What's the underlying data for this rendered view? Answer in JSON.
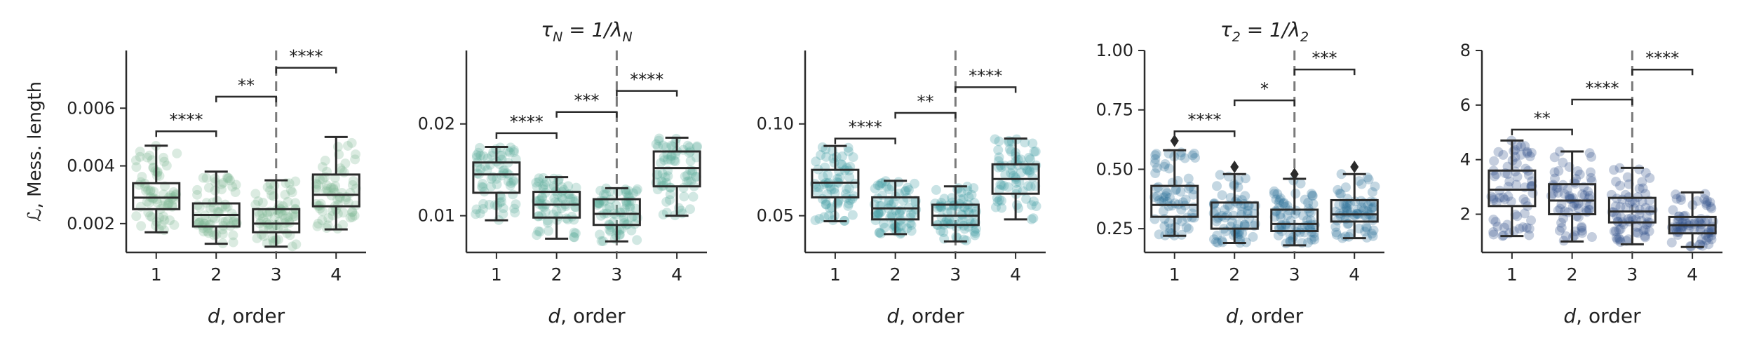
{
  "chart_data": [
    {
      "type": "box",
      "title": "",
      "xlabel": "d, order",
      "ylabel": "ℒ, Mess. length",
      "categories": [
        "1",
        "2",
        "3",
        "4"
      ],
      "ylim": [
        0.001,
        0.008
      ],
      "yticks": [
        0.002,
        0.004,
        0.006
      ],
      "ytick_labels": [
        "0.002",
        "0.004",
        "0.006"
      ],
      "color": "#7fb894",
      "boxes": [
        {
          "x": "1",
          "whislo": 0.0017,
          "q1": 0.0025,
          "med": 0.0029,
          "q3": 0.0034,
          "whishi": 0.0047,
          "fliers": []
        },
        {
          "x": "2",
          "whislo": 0.0013,
          "q1": 0.0019,
          "med": 0.0023,
          "q3": 0.0027,
          "whishi": 0.0038,
          "fliers": []
        },
        {
          "x": "3",
          "whislo": 0.0012,
          "q1": 0.0017,
          "med": 0.002,
          "q3": 0.0025,
          "whishi": 0.0035,
          "fliers": []
        },
        {
          "x": "4",
          "whislo": 0.0018,
          "q1": 0.0026,
          "med": 0.003,
          "q3": 0.0037,
          "whishi": 0.005,
          "fliers": []
        }
      ],
      "brackets": [
        {
          "from": "1",
          "to": "2",
          "label": "****",
          "y": 0.0052
        },
        {
          "from": "2",
          "to": "3",
          "label": "**",
          "y": 0.0064
        },
        {
          "from": "3",
          "to": "4",
          "label": "****",
          "y": 0.0074
        }
      ],
      "vline_at": "3"
    },
    {
      "type": "box",
      "title": "τN = 1/λN",
      "xlabel": "d, order",
      "ylabel": "",
      "categories": [
        "1",
        "2",
        "3",
        "4"
      ],
      "ylim": [
        0.006,
        0.028
      ],
      "yticks": [
        0.01,
        0.02
      ],
      "ytick_labels": [
        "0.01",
        "0.02"
      ],
      "color": "#5fae9a",
      "boxes": [
        {
          "x": "1",
          "whislo": 0.0095,
          "q1": 0.0125,
          "med": 0.0145,
          "q3": 0.0158,
          "whishi": 0.0175,
          "fliers": []
        },
        {
          "x": "2",
          "whislo": 0.0075,
          "q1": 0.0098,
          "med": 0.0112,
          "q3": 0.0126,
          "whishi": 0.0142,
          "fliers": []
        },
        {
          "x": "3",
          "whislo": 0.0072,
          "q1": 0.009,
          "med": 0.0102,
          "q3": 0.0118,
          "whishi": 0.013,
          "fliers": []
        },
        {
          "x": "4",
          "whislo": 0.01,
          "q1": 0.0132,
          "med": 0.0152,
          "q3": 0.017,
          "whishi": 0.0185,
          "fliers": []
        }
      ],
      "brackets": [
        {
          "from": "1",
          "to": "2",
          "label": "****",
          "y": 0.019
        },
        {
          "from": "2",
          "to": "3",
          "label": "***",
          "y": 0.0213
        },
        {
          "from": "3",
          "to": "4",
          "label": "****",
          "y": 0.0236
        }
      ],
      "vline_at": "3"
    },
    {
      "type": "box",
      "title": "",
      "xlabel": "d, order",
      "ylabel": "",
      "categories": [
        "1",
        "2",
        "3",
        "4"
      ],
      "ylim": [
        0.03,
        0.14
      ],
      "yticks": [
        0.05,
        0.1
      ],
      "ytick_labels": [
        "0.05",
        "0.10"
      ],
      "color": "#3c9aa0",
      "boxes": [
        {
          "x": "1",
          "whislo": 0.047,
          "q1": 0.06,
          "med": 0.068,
          "q3": 0.075,
          "whishi": 0.088,
          "fliers": []
        },
        {
          "x": "2",
          "whislo": 0.04,
          "q1": 0.048,
          "med": 0.054,
          "q3": 0.06,
          "whishi": 0.069,
          "fliers": []
        },
        {
          "x": "3",
          "whislo": 0.036,
          "q1": 0.045,
          "med": 0.05,
          "q3": 0.056,
          "whishi": 0.066,
          "fliers": []
        },
        {
          "x": "4",
          "whislo": 0.048,
          "q1": 0.062,
          "med": 0.07,
          "q3": 0.078,
          "whishi": 0.092,
          "fliers": []
        }
      ],
      "brackets": [
        {
          "from": "1",
          "to": "2",
          "label": "****",
          "y": 0.092
        },
        {
          "from": "2",
          "to": "3",
          "label": "**",
          "y": 0.106
        },
        {
          "from": "3",
          "to": "4",
          "label": "****",
          "y": 0.12
        }
      ],
      "vline_at": "3"
    },
    {
      "type": "box",
      "title": "τ2 = 1/λ2",
      "xlabel": "d, order",
      "ylabel": "",
      "categories": [
        "1",
        "2",
        "3",
        "4"
      ],
      "ylim": [
        0.15,
        1.0
      ],
      "yticks": [
        0.25,
        0.5,
        0.75,
        1.0
      ],
      "ytick_labels": [
        "0.25",
        "0.50",
        "0.75",
        "1.00"
      ],
      "color": "#2a6f97",
      "boxes": [
        {
          "x": "1",
          "whislo": 0.22,
          "q1": 0.3,
          "med": 0.35,
          "q3": 0.43,
          "whishi": 0.58,
          "fliers": [
            0.62
          ]
        },
        {
          "x": "2",
          "whislo": 0.19,
          "q1": 0.25,
          "med": 0.3,
          "q3": 0.36,
          "whishi": 0.48,
          "fliers": [
            0.51
          ]
        },
        {
          "x": "3",
          "whislo": 0.18,
          "q1": 0.24,
          "med": 0.27,
          "q3": 0.33,
          "whishi": 0.46,
          "fliers": [
            0.48
          ]
        },
        {
          "x": "4",
          "whislo": 0.21,
          "q1": 0.28,
          "med": 0.31,
          "q3": 0.37,
          "whishi": 0.48,
          "fliers": [
            0.51
          ]
        }
      ],
      "brackets": [
        {
          "from": "1",
          "to": "2",
          "label": "****",
          "y": 0.66
        },
        {
          "from": "2",
          "to": "3",
          "label": "*",
          "y": 0.79
        },
        {
          "from": "3",
          "to": "4",
          "label": "***",
          "y": 0.92
        }
      ],
      "vline_at": "3"
    },
    {
      "type": "box",
      "title": "",
      "xlabel": "d, order",
      "ylabel": "",
      "categories": [
        "1",
        "2",
        "3",
        "4"
      ],
      "ylim": [
        0.6,
        8.0
      ],
      "yticks": [
        2,
        4,
        6,
        8
      ],
      "ytick_labels": [
        "2",
        "4",
        "6",
        "8"
      ],
      "color": "#2f4f8a",
      "boxes": [
        {
          "x": "1",
          "whislo": 1.2,
          "q1": 2.3,
          "med": 2.9,
          "q3": 3.6,
          "whishi": 4.7,
          "fliers": []
        },
        {
          "x": "2",
          "whislo": 1.0,
          "q1": 2.0,
          "med": 2.5,
          "q3": 3.1,
          "whishi": 4.3,
          "fliers": []
        },
        {
          "x": "3",
          "whislo": 0.9,
          "q1": 1.7,
          "med": 2.1,
          "q3": 2.6,
          "whishi": 3.7,
          "fliers": []
        },
        {
          "x": "4",
          "whislo": 0.8,
          "q1": 1.3,
          "med": 1.6,
          "q3": 1.9,
          "whishi": 2.8,
          "fliers": []
        }
      ],
      "brackets": [
        {
          "from": "1",
          "to": "2",
          "label": "**",
          "y": 5.1
        },
        {
          "from": "2",
          "to": "3",
          "label": "****",
          "y": 6.2
        },
        {
          "from": "3",
          "to": "4",
          "label": "****",
          "y": 7.3
        }
      ],
      "vline_at": "3"
    }
  ]
}
